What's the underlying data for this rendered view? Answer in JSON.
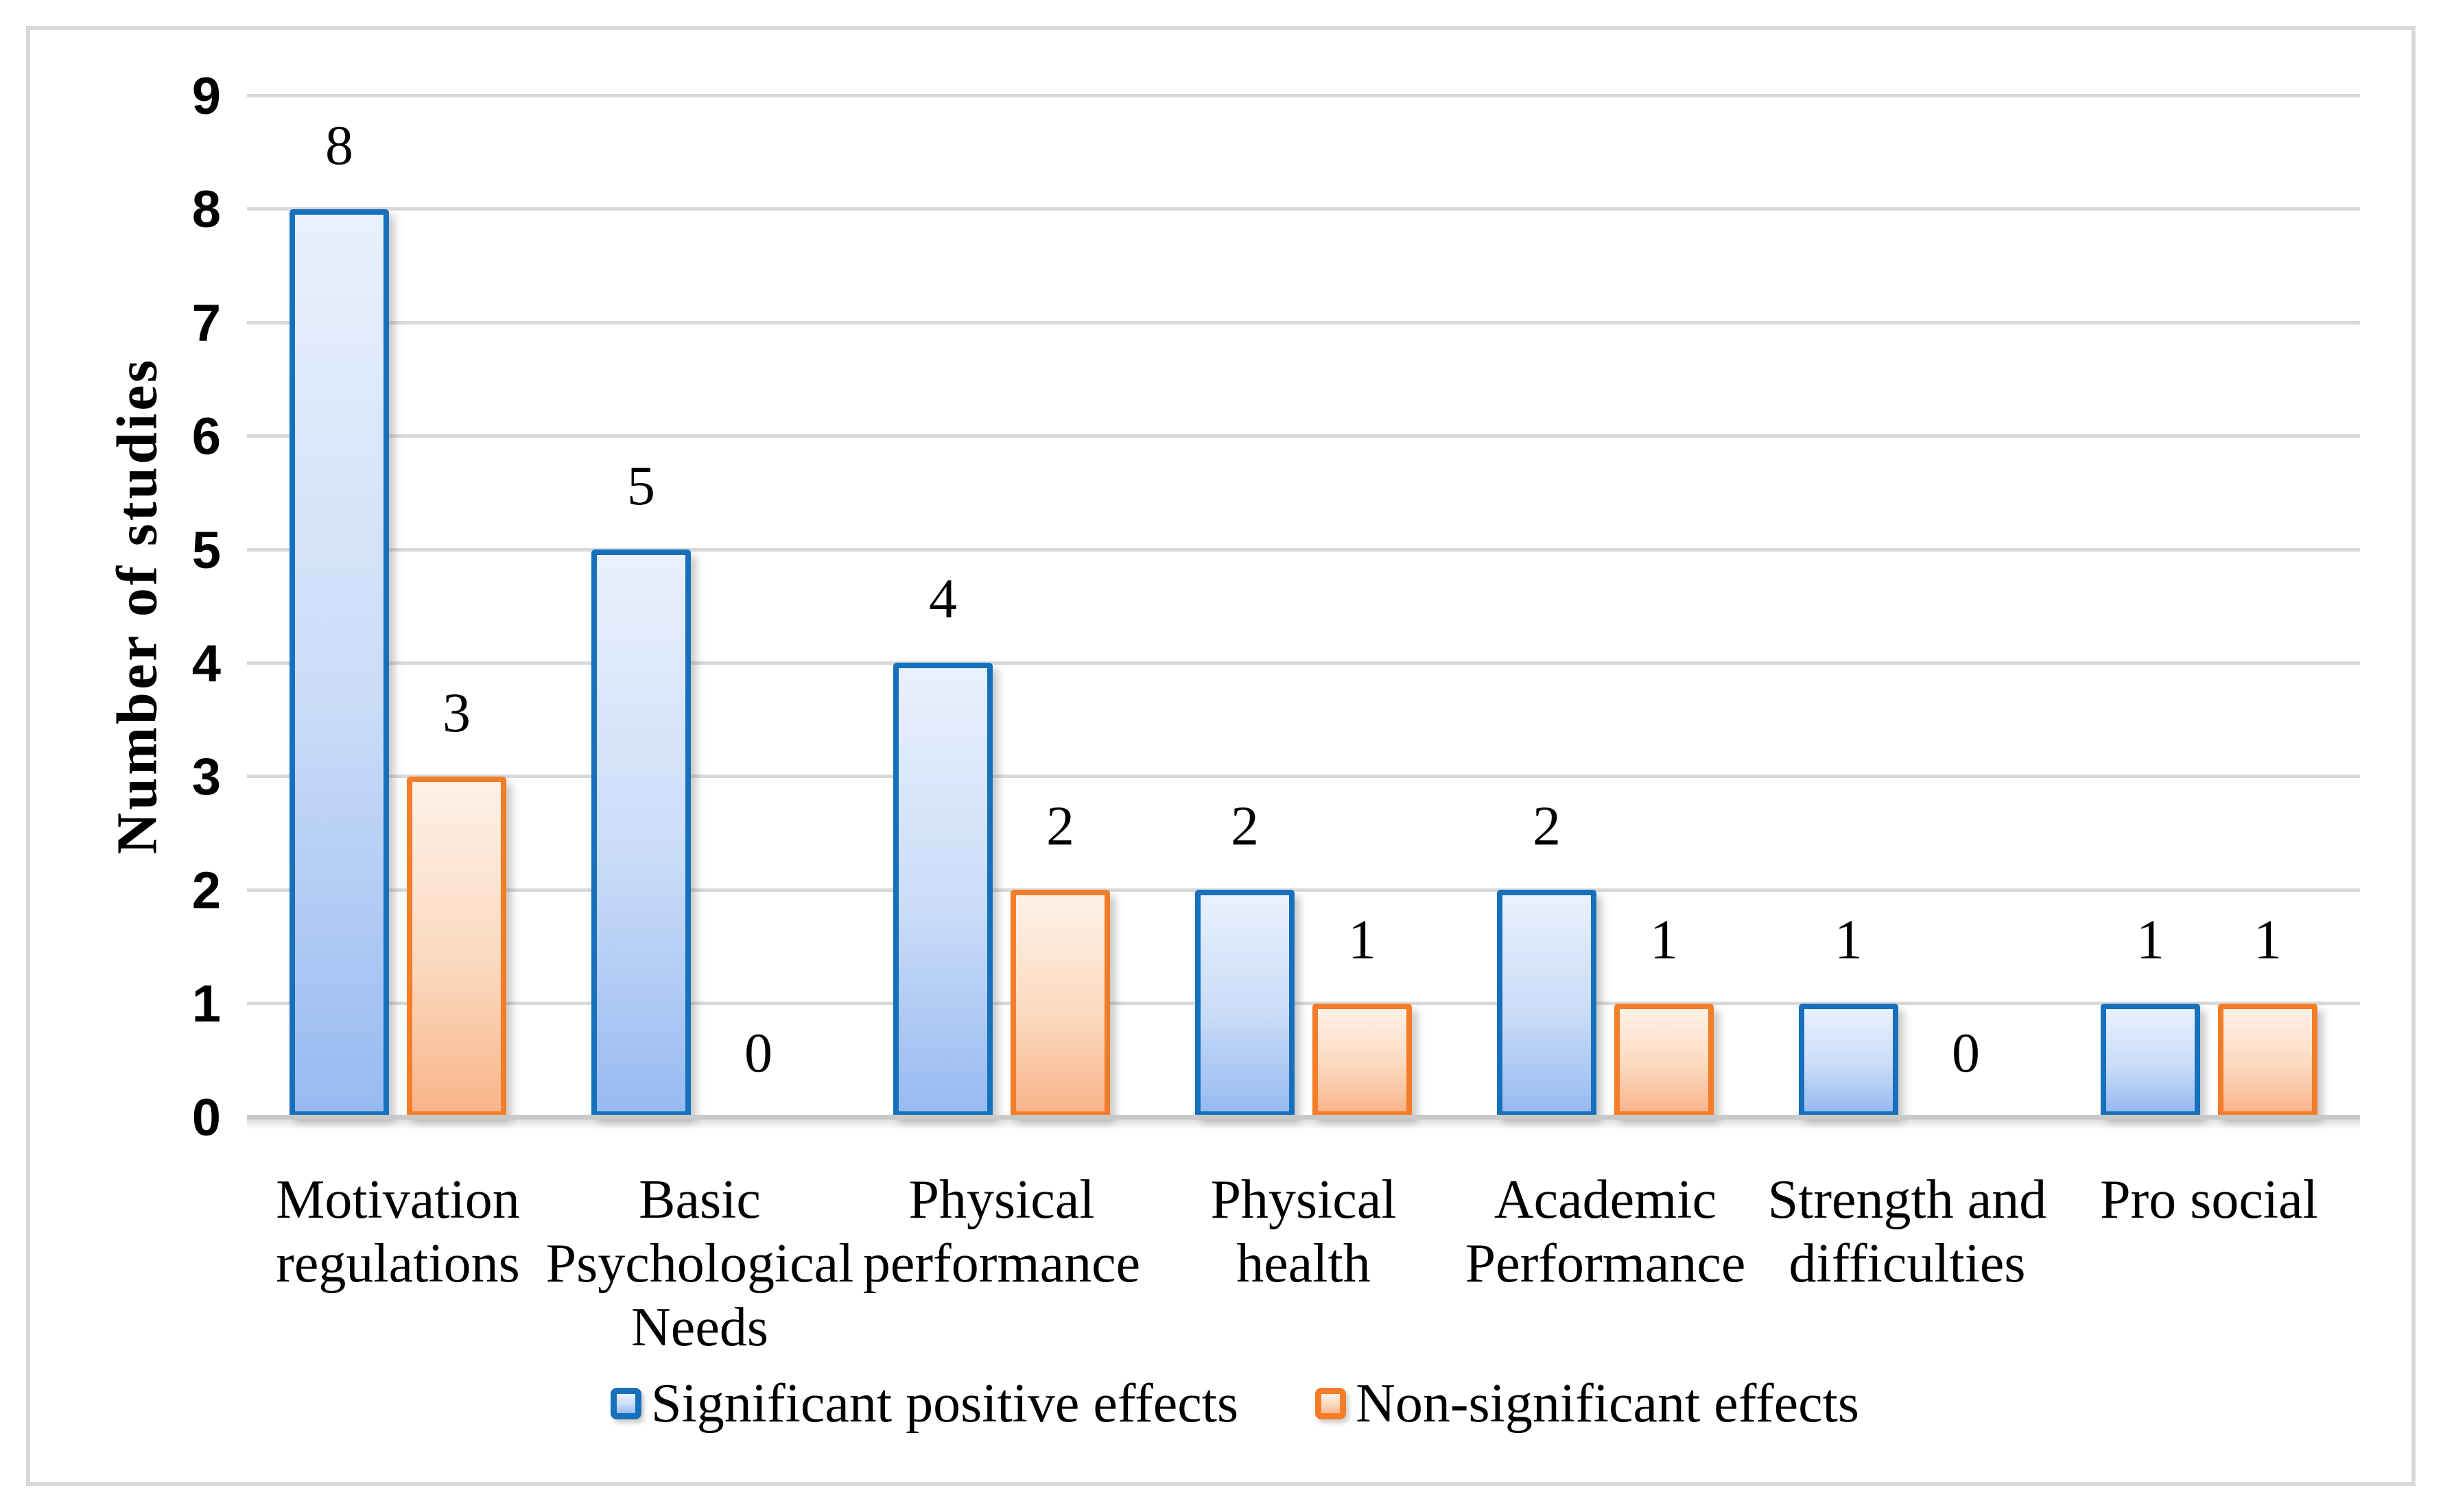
{
  "chart_data": {
    "type": "bar",
    "title": "",
    "xlabel": "",
    "ylabel": "Number of studies",
    "ylim": [
      0,
      9
    ],
    "yticks": [
      0,
      1,
      2,
      3,
      4,
      5,
      6,
      7,
      8,
      9
    ],
    "grid": true,
    "legend_position": "bottom",
    "categories": [
      "Motivation regulations",
      "Basic Psychological Needs",
      "Physical performance",
      "Physical health",
      "Academic Performance",
      "Strength and difficulties",
      "Pro social"
    ],
    "series": [
      {
        "name": "Significant positive effects",
        "values": [
          8,
          5,
          4,
          2,
          2,
          1,
          1
        ]
      },
      {
        "name": "Non-significant effects",
        "values": [
          3,
          0,
          2,
          1,
          1,
          0,
          1
        ]
      }
    ],
    "data_labels_shown": true,
    "zero_value_labels_shown": true
  },
  "colors": {
    "series1_border": "#1670BC",
    "series1_fill_top": "#E9F0FC",
    "series1_fill_mid": "#C9DCF8",
    "series1_fill_bottom": "#97BAF1",
    "series2_border": "#F57D28",
    "series2_fill_top": "#FDF1E7",
    "series2_fill_mid": "#FBD9BE",
    "series2_fill_bottom": "#F9B58C",
    "gridline": "#D9D9D9",
    "axis_line": "#C9C9C9",
    "figure_border": "#D9D9D9",
    "text": "#000000"
  }
}
